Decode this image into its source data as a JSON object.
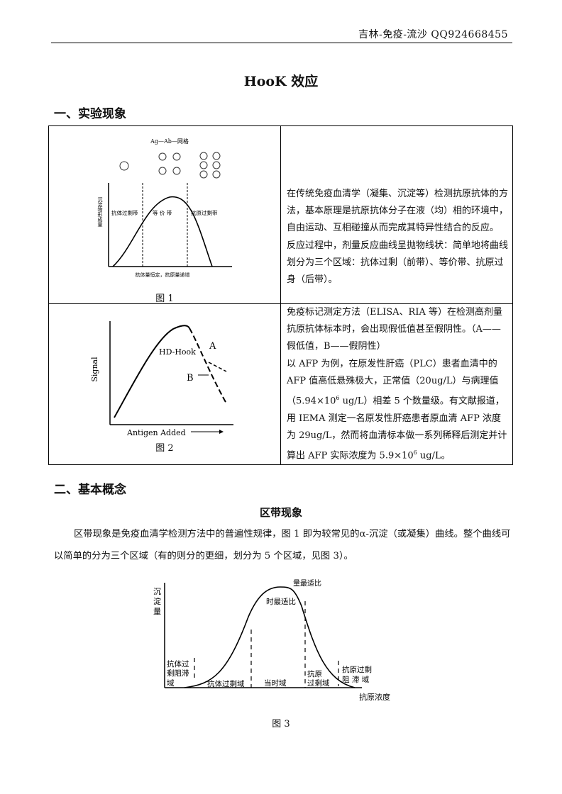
{
  "header": {
    "text": "吉林-免疫-流沙   QQ924668455"
  },
  "title": "HooK 效应",
  "section1": {
    "heading": "一、实验现象"
  },
  "figure1": {
    "caption": "图 1",
    "top_label": "Ag—Ab—网格",
    "y_label": "沉淀物形成量",
    "x_label": "抗体量恒定，抗原量递增",
    "regions": [
      "抗体过剩带",
      "等 价 带",
      "抗原过剩带"
    ]
  },
  "cell1_text": [
    "在传统免疫血清学（凝集、沉淀等）检测抗原抗体的方法，基本原理是抗原抗体分子在液（均）相的环境中，自由运动、互相碰撞从而完成其特异性结合的反应。",
    "反应过程中，剂量反应曲线呈抛物线状：简单地将曲线划分为三个区域：抗体过剩（前带）、等价带、抗原过身（后带）。"
  ],
  "figure2": {
    "caption": "图 2",
    "y_label": "Signal",
    "x_label": "Antigen Added",
    "curve_label": "HD-Hook",
    "point_a": "A",
    "point_b": "B"
  },
  "cell2_text": {
    "l1": "免疫标记测定方法（ELISA、RIA 等）在检测高剂量抗原抗体标本时，会出现假低值甚至假阴性。（A——假低值，B——假阴性）",
    "l2a": "以 AFP 为例，在原发性肝癌（PLC）患者血清中的 AFP 值高低悬殊极大，正常值（20ug/L）与病理值（5.94×10",
    "l2exp": "6",
    "l2b": " ug/L）相差 5 个数量级。有文献报道，用 IEMA 测定一名原发性肝癌患者原血清 AFP 浓度为 29ug/L，然而将血清标本做一系列稀释后测定并计算出 AFP 实际浓度为 5.9×10",
    "l2exp2": "6",
    "l2c": " ug/L。"
  },
  "section2": {
    "heading": "二、基本概念"
  },
  "subheading": "区带现象",
  "paragraph": "区带现象是免疫血清学检测方法中的普遍性规律，图 1 即为较常见的α-沉淀（或凝集）曲线。整个曲线可以简单的分为三个区域（有的则分的更细，划分为 5 个区域，见图 3）。",
  "figure3": {
    "caption": "图 3",
    "y_label": [
      "沉",
      "淀",
      "量"
    ],
    "x_label": "抗原浓度",
    "peak_labels": [
      "量最适比",
      "时最适比"
    ],
    "zones": {
      "z1": [
        "抗体过",
        "剩阻滞",
        "域"
      ],
      "z2": "抗体过剩域",
      "z3": "当时域",
      "z4": [
        "抗原",
        "过剩域"
      ],
      "z5": [
        "抗原过剩",
        "阻 滞 域"
      ]
    }
  }
}
